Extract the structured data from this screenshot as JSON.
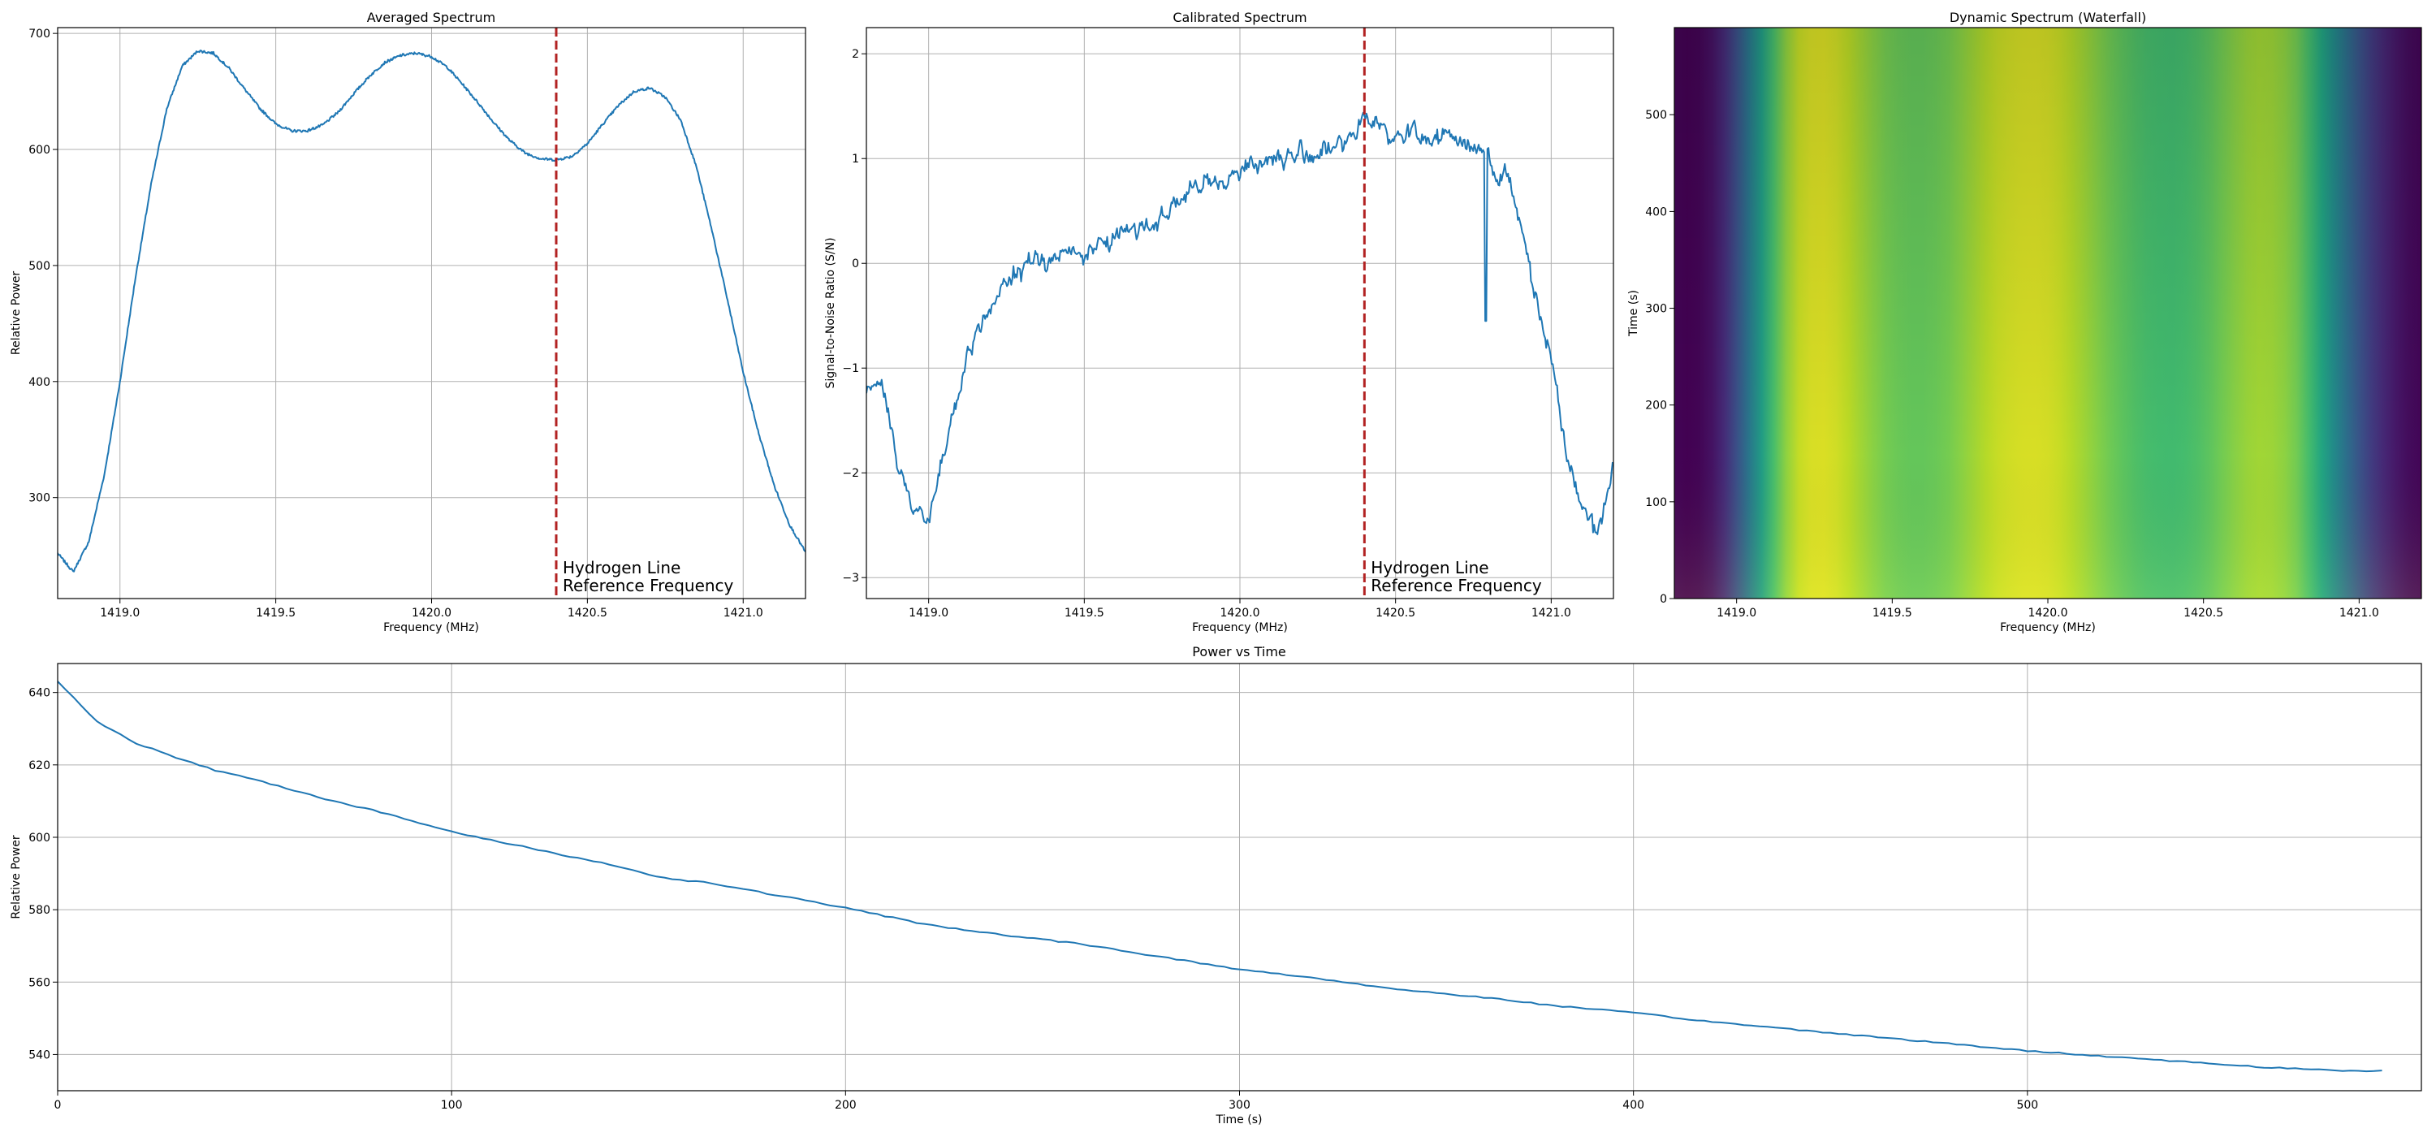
{
  "colors": {
    "line": "#1f77b4",
    "reference": "#b22222",
    "grid": "#b0b0b0",
    "frame": "#000000"
  },
  "chart_data": [
    {
      "id": "averaged",
      "type": "line",
      "title": "Averaged Spectrum",
      "xlabel": "Frequency (MHz)",
      "ylabel": "Relative Power",
      "xlim": [
        1418.8,
        1421.2
      ],
      "ylim": [
        213,
        705
      ],
      "xticks": [
        1419.0,
        1419.5,
        1420.0,
        1420.5,
        1421.0
      ],
      "xticklabels": [
        "1419.0",
        "1419.5",
        "1420.0",
        "1420.5",
        "1421.0"
      ],
      "yticks": [
        300,
        400,
        500,
        600,
        700
      ],
      "yticklabels": [
        "300",
        "400",
        "500",
        "600",
        "700"
      ],
      "grid": true,
      "series": [
        {
          "x": [
            1418.8,
            1418.85,
            1418.9,
            1418.95,
            1419.0,
            1419.05,
            1419.1,
            1419.15,
            1419.2,
            1419.25,
            1419.3,
            1419.35,
            1419.4,
            1419.45,
            1419.5,
            1419.55,
            1419.6,
            1419.65,
            1419.7,
            1419.75,
            1419.8,
            1419.85,
            1419.9,
            1419.95,
            1420.0,
            1420.05,
            1420.1,
            1420.15,
            1420.2,
            1420.25,
            1420.3,
            1420.35,
            1420.4,
            1420.45,
            1420.5,
            1420.55,
            1420.6,
            1420.65,
            1420.7,
            1420.75,
            1420.8,
            1420.85,
            1420.9,
            1420.95,
            1421.0,
            1421.05,
            1421.1,
            1421.15,
            1421.2
          ],
          "y": [
            252,
            236,
            262,
            320,
            400,
            490,
            570,
            635,
            672,
            685,
            683,
            670,
            652,
            635,
            622,
            616,
            616,
            621,
            632,
            648,
            663,
            675,
            681,
            683,
            680,
            671,
            656,
            640,
            623,
            608,
            597,
            592,
            591,
            594,
            605,
            622,
            638,
            650,
            653,
            645,
            625,
            585,
            530,
            470,
            408,
            355,
            310,
            276,
            253
          ]
        }
      ],
      "reference_line": {
        "x": 1420.4,
        "label": [
          "Hydrogen Line",
          "Reference Frequency"
        ]
      }
    },
    {
      "id": "calibrated",
      "type": "line",
      "title": "Calibrated Spectrum",
      "xlabel": "Frequency (MHz)",
      "ylabel": "Signal-to-Noise Ratio (S/N)",
      "xlim": [
        1418.8,
        1421.2
      ],
      "ylim": [
        -3.2,
        2.25
      ],
      "xticks": [
        1419.0,
        1419.5,
        1420.0,
        1420.5,
        1421.0
      ],
      "xticklabels": [
        "1419.0",
        "1419.5",
        "1420.0",
        "1420.5",
        "1421.0"
      ],
      "yticks": [
        -3,
        -2,
        -1,
        0,
        1,
        2
      ],
      "yticklabels": [
        "−3",
        "−2",
        "−1",
        "0",
        "1",
        "2"
      ],
      "grid": true,
      "series": [
        {
          "x": [
            1418.8,
            1418.85,
            1418.9,
            1418.95,
            1419.0,
            1419.05,
            1419.1,
            1419.15,
            1419.2,
            1419.25,
            1419.3,
            1419.35,
            1419.4,
            1419.45,
            1419.5,
            1419.55,
            1419.6,
            1419.65,
            1419.7,
            1419.75,
            1419.8,
            1419.85,
            1419.9,
            1419.95,
            1420.0,
            1420.05,
            1420.1,
            1420.15,
            1420.2,
            1420.25,
            1420.3,
            1420.35,
            1420.4,
            1420.45,
            1420.5,
            1420.55,
            1420.6,
            1420.65,
            1420.7,
            1420.75,
            1420.8,
            1420.82,
            1420.85,
            1420.9,
            1420.95,
            1421.0,
            1421.05,
            1421.1,
            1421.15,
            1421.2
          ],
          "y": [
            -1.3,
            -1.1,
            -1.9,
            -2.3,
            -2.5,
            -1.8,
            -1.2,
            -0.7,
            -0.4,
            -0.2,
            -0.05,
            0.05,
            0.05,
            0.1,
            0.1,
            0.15,
            0.25,
            0.35,
            0.35,
            0.45,
            0.6,
            0.7,
            0.75,
            0.8,
            0.9,
            0.95,
            1.0,
            1.0,
            1.05,
            1.05,
            1.1,
            1.15,
            1.4,
            1.35,
            1.2,
            1.25,
            1.15,
            1.25,
            1.15,
            1.15,
            1.05,
            0.8,
            0.9,
            0.4,
            -0.3,
            -0.9,
            -1.8,
            -2.3,
            -2.6,
            -1.9
          ],
          "noise": 0.15
        }
      ],
      "reference_line": {
        "x": 1420.4,
        "label": [
          "Hydrogen Line",
          "Reference Frequency"
        ]
      }
    },
    {
      "id": "waterfall",
      "type": "heatmap",
      "title": "Dynamic Spectrum (Waterfall)",
      "xlabel": "Frequency (MHz)",
      "ylabel": "Time (s)",
      "xlim": [
        1418.8,
        1421.2
      ],
      "ylim": [
        0,
        590
      ],
      "xticks": [
        1419.0,
        1419.5,
        1420.0,
        1420.5,
        1421.0
      ],
      "xticklabels": [
        "1419.0",
        "1419.5",
        "1420.0",
        "1420.5",
        "1421.0"
      ],
      "yticks": [
        0,
        100,
        200,
        300,
        400,
        500
      ],
      "yticklabels": [
        "0",
        "100",
        "200",
        "300",
        "400",
        "500"
      ],
      "colormap": "viridis",
      "vmin": 236,
      "vmax": 700
    },
    {
      "id": "power",
      "type": "line",
      "title": "Power vs Time",
      "xlabel": "Time (s)",
      "ylabel": "Relative Power",
      "xlim": [
        0,
        600
      ],
      "ylim": [
        530,
        648
      ],
      "xticks": [
        0,
        100,
        200,
        300,
        400,
        500
      ],
      "xticklabels": [
        "0",
        "100",
        "200",
        "300",
        "400",
        "500"
      ],
      "yticks": [
        540,
        560,
        580,
        600,
        620,
        640
      ],
      "yticklabels": [
        "540",
        "560",
        "580",
        "600",
        "620",
        "640"
      ],
      "grid": true,
      "series": [
        {
          "x": [
            0,
            10,
            20,
            30,
            40,
            50,
            60,
            70,
            80,
            90,
            100,
            120,
            140,
            155,
            165,
            180,
            200,
            220,
            240,
            260,
            280,
            300,
            320,
            340,
            360,
            380,
            400,
            420,
            440,
            460,
            480,
            500,
            520,
            540,
            560,
            580,
            590
          ],
          "y": [
            643,
            632,
            626,
            622,
            618.5,
            616,
            613,
            610,
            607.5,
            604.5,
            601.5,
            597,
            592.5,
            588.5,
            587.5,
            584.5,
            580.5,
            576,
            573,
            570.5,
            567,
            563.5,
            561,
            558,
            556,
            553.5,
            551.5,
            549,
            547,
            545,
            543,
            541,
            539.5,
            538,
            536.5,
            535.5,
            535.5
          ]
        }
      ]
    }
  ]
}
